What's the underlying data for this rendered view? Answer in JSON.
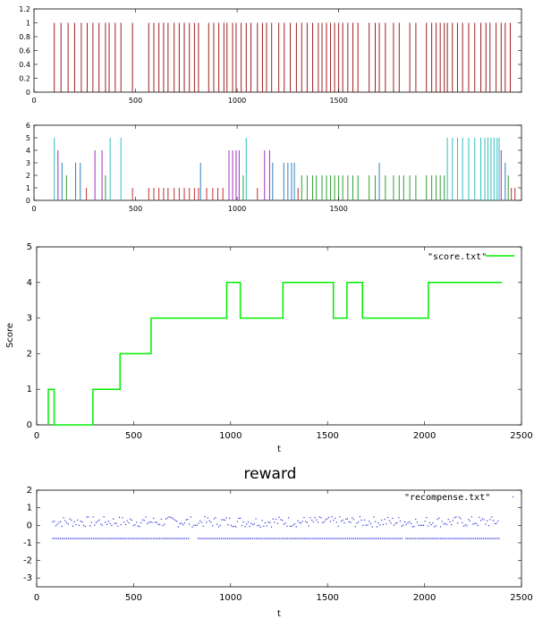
{
  "chart_data": [
    {
      "type": "bar",
      "title": "",
      "xlim": [
        0,
        2400
      ],
      "ylim": [
        0,
        1.2
      ],
      "xticks": [
        "0",
        "500",
        "1000",
        "1500"
      ],
      "yticks": [
        "0",
        "0.2",
        "0.4",
        "0.6",
        "0.8",
        "1",
        "1.2"
      ],
      "color": "#a02020",
      "x": [
        100,
        133,
        168,
        200,
        233,
        262,
        290,
        320,
        352,
        370,
        400,
        428,
        485,
        565,
        590,
        615,
        638,
        660,
        690,
        715,
        740,
        765,
        790,
        810,
        860,
        885,
        910,
        935,
        950,
        978,
        995,
        1020,
        1045,
        1068,
        1100,
        1125,
        1145,
        1170,
        1205,
        1232,
        1262,
        1292,
        1318,
        1345,
        1372,
        1400,
        1418,
        1440,
        1460,
        1480,
        1500,
        1520,
        1545,
        1570,
        1595,
        1650,
        1680,
        1700,
        1730,
        1770,
        1798,
        1850,
        1880,
        1932,
        1958,
        1980,
        2000,
        2020,
        2035,
        2060,
        2085,
        2110,
        2140,
        2170,
        2200,
        2225,
        2245,
        2275,
        2300,
        2320,
        2345
      ],
      "values": [
        1,
        1,
        1,
        1,
        1,
        1,
        1,
        1,
        1,
        1,
        1,
        1,
        1,
        1,
        1,
        1,
        1,
        1,
        1,
        1,
        1,
        1,
        1,
        1,
        1,
        1,
        1,
        1,
        1,
        1,
        1,
        1,
        1,
        1,
        1,
        1,
        1,
        1,
        1,
        1,
        1,
        1,
        1,
        1,
        1,
        1,
        1,
        1,
        1,
        1,
        1,
        1,
        1,
        1,
        1,
        1,
        1,
        1,
        1,
        1,
        1,
        1,
        1,
        1,
        1,
        1,
        1,
        1,
        1,
        1,
        1,
        1,
        1,
        1,
        1,
        1,
        1,
        1,
        1,
        1,
        1
      ]
    },
    {
      "type": "bar",
      "title": "",
      "xlim": [
        0,
        2400
      ],
      "ylim": [
        0,
        6
      ],
      "xticks": [
        "0",
        "500",
        "1000",
        "1500"
      ],
      "yticks": [
        "0",
        "1",
        "2",
        "3",
        "4",
        "5",
        "6"
      ],
      "colors": {
        "1": "#c03030",
        "2": "#30a030",
        "3": "#3080c0",
        "4": "#a030c0",
        "5": "#30c0c0"
      },
      "x": [
        100,
        118,
        138,
        160,
        205,
        228,
        258,
        300,
        335,
        352,
        375,
        428,
        485,
        565,
        590,
        615,
        638,
        660,
        690,
        715,
        740,
        765,
        790,
        810,
        820,
        850,
        880,
        905,
        930,
        960,
        978,
        995,
        1010,
        1030,
        1045,
        1100,
        1135,
        1160,
        1175,
        1230,
        1250,
        1268,
        1282,
        1300,
        1318,
        1345,
        1372,
        1390,
        1418,
        1440,
        1460,
        1480,
        1500,
        1520,
        1545,
        1570,
        1595,
        1650,
        1680,
        1700,
        1730,
        1770,
        1798,
        1820,
        1850,
        1880,
        1932,
        1958,
        1980,
        2000,
        2020,
        2035,
        2060,
        2085,
        2110,
        2140,
        2170,
        2200,
        2220,
        2235,
        2250,
        2265,
        2280,
        2290,
        2300,
        2320,
        2335,
        2350,
        2368
      ],
      "values": [
        5,
        4,
        3,
        2,
        3,
        3,
        1,
        4,
        4,
        2,
        5,
        5,
        1,
        1,
        1,
        1,
        1,
        1,
        1,
        1,
        1,
        1,
        1,
        1,
        3,
        1,
        1,
        1,
        1,
        4,
        4,
        4,
        4,
        2,
        5,
        1,
        4,
        4,
        3,
        3,
        3,
        3,
        3,
        1,
        2,
        2,
        2,
        2,
        2,
        2,
        2,
        2,
        2,
        2,
        2,
        2,
        2,
        2,
        2,
        3,
        2,
        2,
        2,
        2,
        2,
        2,
        2,
        2,
        2,
        2,
        2,
        5,
        5,
        5,
        5,
        5,
        5,
        5,
        5,
        5,
        5,
        5,
        5,
        5,
        4,
        3,
        2,
        1,
        1
      ]
    },
    {
      "type": "line",
      "title": "",
      "xlabel": "t",
      "ylabel": "Score",
      "xlim": [
        0,
        2500
      ],
      "ylim": [
        0,
        5
      ],
      "xticks": [
        "0",
        "500",
        "1000",
        "1500",
        "2000",
        "2500"
      ],
      "yticks": [
        "0",
        "1",
        "2",
        "3",
        "4",
        "5"
      ],
      "legend": "\"score.txt\"",
      "color": "#00ee00",
      "x": [
        60,
        60,
        90,
        90,
        290,
        290,
        430,
        430,
        590,
        590,
        600,
        600,
        980,
        980,
        1050,
        1050,
        1270,
        1270,
        1530,
        1530,
        1600,
        1600,
        1680,
        1680,
        2020,
        2020,
        2400
      ],
      "y": [
        0,
        1,
        1,
        0,
        0,
        1,
        1,
        2,
        2,
        3,
        3,
        3,
        3,
        4,
        4,
        3,
        3,
        4,
        4,
        3,
        3,
        4,
        4,
        3,
        3,
        4,
        4
      ]
    },
    {
      "type": "scatter",
      "title": "reward",
      "xlabel": "t",
      "ylabel": "",
      "xlim": [
        0,
        2500
      ],
      "ylim": [
        -3.5,
        2
      ],
      "xticks": [
        "0",
        "500",
        "1000",
        "1500",
        "2000",
        "2500"
      ],
      "yticks": [
        "2",
        "1",
        "0",
        "-1",
        "-2",
        "-3"
      ],
      "legend": "\"recompense.txt\"",
      "color": "#3030e0",
      "baseline": 0,
      "lower_level": -0.75,
      "x_start": 80,
      "x_end": 2380
    }
  ]
}
